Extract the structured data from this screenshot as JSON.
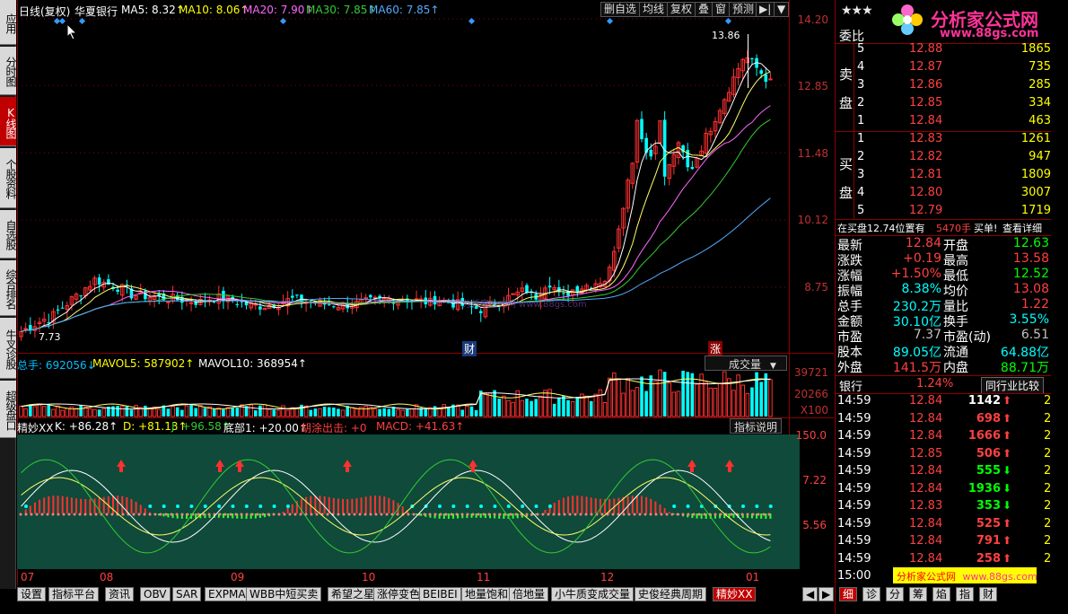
{
  "left_tabs": [
    {
      "label": "应用",
      "active": false
    },
    {
      "label": "分时图",
      "active": false
    },
    {
      "label": "K线图",
      "active": true
    },
    {
      "label": "个股资料",
      "active": false
    },
    {
      "label": "自选股",
      "active": false
    },
    {
      "label": "综合排名",
      "active": false
    },
    {
      "label": "牛叉诊股",
      "active": false
    },
    {
      "label": "超级盘口",
      "active": false
    }
  ],
  "kline_header": {
    "period": "日线(复权)",
    "stock": "华夏银行",
    "ma5": "MA5: 8.32↑",
    "ma10": "MA10: 8.06↑",
    "ma20": "MA20: 7.90↑",
    "ma30": "MA30: 7.85↑",
    "ma60": "MA60: 7.85↑"
  },
  "toolbar": {
    "del_watch": "删自选",
    "ma_line": "均线",
    "adjust": "复权",
    "overlay": "叠",
    "window": "窗",
    "predict": "预测",
    "nav": "▶|",
    "dropdown": "▼"
  },
  "price_axis": [
    "14.20",
    "12.85",
    "11.48",
    "10.12",
    "8.75"
  ],
  "price_annotations": {
    "high": "13.86",
    "low": "7.73",
    "marker_cai": "财",
    "marker_zhang": "涨"
  },
  "volume_header": {
    "total": "总手: 692056↓",
    "mavol5": "MAVOL5: 587902↑",
    "mavol10": "MAVOL10: 368954↑",
    "selector": "成交量",
    "selector_arrow": "▼"
  },
  "volume_axis": [
    "39721",
    "20266",
    "X100"
  ],
  "indicator_header": {
    "name": "精妙XX",
    "k": "K: +86.28↑",
    "d": "D: +81.13↑",
    "j": "J: +96.58↑",
    "bottom": "底部1: +20.00↑",
    "shout": "胡涂出击: +0",
    "macd": "MACD: +41.63↑",
    "explain": "指标说明"
  },
  "indicator_axis": [
    "150.0",
    "7.22",
    "5.56"
  ],
  "x_axis": [
    "07",
    "08",
    "09",
    "10",
    "11",
    "12",
    "01"
  ],
  "watermark": "分析家公式网 www.88gs.com",
  "right_panel": {
    "stars": "★★★",
    "logo_title": "分析家公式网",
    "logo_url": "www.88gs.com",
    "weibi_label": "委比",
    "sell_label": [
      "卖",
      "盘"
    ],
    "buy_label": [
      "买",
      "盘"
    ],
    "sell": [
      {
        "n": "5",
        "price": "12.88",
        "vol": "1865"
      },
      {
        "n": "4",
        "price": "12.87",
        "vol": "735"
      },
      {
        "n": "3",
        "price": "12.86",
        "vol": "285"
      },
      {
        "n": "2",
        "price": "12.85",
        "vol": "334"
      },
      {
        "n": "1",
        "price": "12.84",
        "vol": "463"
      }
    ],
    "buy": [
      {
        "n": "1",
        "price": "12.83",
        "vol": "1261"
      },
      {
        "n": "2",
        "price": "12.82",
        "vol": "947"
      },
      {
        "n": "3",
        "price": "12.81",
        "vol": "1809"
      },
      {
        "n": "4",
        "price": "12.80",
        "vol": "3007"
      },
      {
        "n": "5",
        "price": "12.79",
        "vol": "1719"
      }
    ],
    "notice": {
      "prefix": "在买盘12.74位置有",
      "amount": "5470手",
      "suffix": "买单!",
      "link": "查看详细"
    },
    "quotes": [
      {
        "l1": "最新",
        "v1": "12.84",
        "c1": "red",
        "l2": "开盘",
        "v2": "12.63",
        "c2": "green"
      },
      {
        "l1": "涨跌",
        "v1": "+0.19",
        "c1": "red",
        "l2": "最高",
        "v2": "13.58",
        "c2": "red"
      },
      {
        "l1": "涨幅",
        "v1": "+1.50%",
        "c1": "red",
        "l2": "最低",
        "v2": "12.52",
        "c2": "green"
      },
      {
        "l1": "振幅",
        "v1": "8.38%",
        "c1": "cyan",
        "l2": "均价",
        "v2": "13.08",
        "c2": "red"
      },
      {
        "l1": "总手",
        "v1": "230.2万",
        "c1": "cyan",
        "l2": "量比",
        "v2": "1.22",
        "c2": "red"
      },
      {
        "l1": "金额",
        "v1": "30.10亿",
        "c1": "cyan",
        "l2": "换手",
        "v2": "3.55%",
        "c2": "cyan"
      },
      {
        "l1": "市盈",
        "v1": "7.37",
        "c1": "gray",
        "l2": "市盈(动)",
        "v2": "6.51",
        "c2": "gray"
      },
      {
        "l1": "股本",
        "v1": "89.05亿",
        "c1": "cyan",
        "l2": "流通",
        "v2": "64.88亿",
        "c2": "cyan"
      },
      {
        "l1": "外盘",
        "v1": "141.5万",
        "c1": "red",
        "l2": "内盘",
        "v2": "88.71万",
        "c2": "green"
      }
    ],
    "sector": {
      "name": "银行",
      "pct": "1.24%",
      "compare": "同行业比较"
    },
    "ticks": [
      {
        "t": "14:59",
        "p": "12.84",
        "v": "1142",
        "dir": "up",
        "vc": "white",
        "x": "2"
      },
      {
        "t": "14:59",
        "p": "12.84",
        "v": "698",
        "dir": "up",
        "vc": "red",
        "x": "2"
      },
      {
        "t": "14:59",
        "p": "12.84",
        "v": "1666",
        "dir": "up",
        "vc": "red",
        "x": "2"
      },
      {
        "t": "14:59",
        "p": "12.85",
        "v": "506",
        "dir": "up",
        "vc": "red",
        "x": "2"
      },
      {
        "t": "14:59",
        "p": "12.84",
        "v": "555",
        "dir": "down",
        "vc": "green",
        "x": "2"
      },
      {
        "t": "14:59",
        "p": "12.84",
        "v": "1936",
        "dir": "down",
        "vc": "green",
        "x": "2"
      },
      {
        "t": "14:59",
        "p": "12.83",
        "v": "353",
        "dir": "down",
        "vc": "green",
        "x": "2"
      },
      {
        "t": "14:59",
        "p": "12.84",
        "v": "525",
        "dir": "up",
        "vc": "red",
        "x": "2"
      },
      {
        "t": "14:59",
        "p": "12.84",
        "v": "791",
        "dir": "up",
        "vc": "red",
        "x": "2"
      },
      {
        "t": "14:59",
        "p": "12.84",
        "v": "258",
        "dir": "up",
        "vc": "red",
        "x": "2"
      },
      {
        "t": "15:00",
        "p": "",
        "v": "",
        "dir": "",
        "vc": "white",
        "x": ""
      }
    ],
    "watermark_box": {
      "name": "分析家公式网",
      "url": "www.88gs.com"
    },
    "bottom_tabs": [
      "细",
      "诊",
      "分",
      "筹",
      "焰",
      "指",
      "财"
    ]
  },
  "bottom_tabs": [
    {
      "label": "设置",
      "active": false
    },
    {
      "label": "指标平台",
      "active": false
    },
    {
      "label": "资讯",
      "active": false
    },
    {
      "label": "OBV",
      "active": false
    },
    {
      "label": "SAR",
      "active": false
    },
    {
      "label": "EXPMA",
      "active": false
    },
    {
      "label": "WBB中短买卖",
      "active": false
    },
    {
      "label": "希望之星",
      "active": false
    },
    {
      "label": "涨停变色",
      "active": false
    },
    {
      "label": "BEIBEI",
      "active": false
    },
    {
      "label": "地量饱和",
      "active": false
    },
    {
      "label": "倍地量",
      "active": false
    },
    {
      "label": "小牛质变成交量",
      "active": false
    },
    {
      "label": "史俊经典周期",
      "active": false
    },
    {
      "label": "精妙XX",
      "active": true
    }
  ],
  "bottom_nav": [
    "◀",
    "▶",
    "◀"
  ],
  "colors": {
    "up": "#ff3030",
    "down": "#00ffff",
    "ma5": "#ffffff",
    "ma10": "#ffff66",
    "ma20": "#ff66ff",
    "ma30": "#33cc33",
    "ma60": "#55aaff",
    "indicator_bg": "#0f4a3a"
  }
}
